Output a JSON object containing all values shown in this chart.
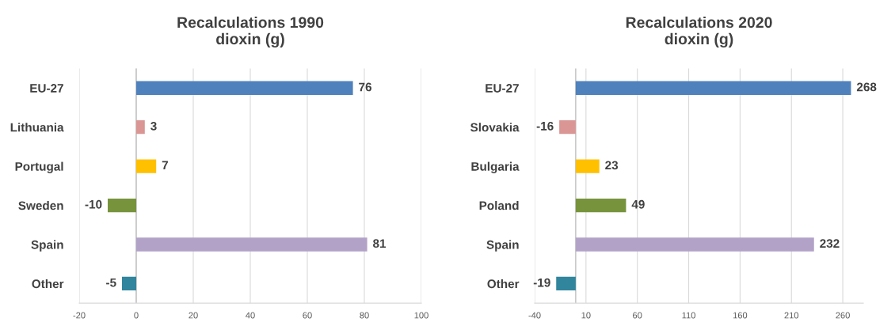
{
  "chart_data": [
    {
      "type": "bar",
      "orientation": "horizontal",
      "title": "Recalculations 1990\ndioxin (g)",
      "categories": [
        "EU-27",
        "Lithuania",
        "Portugal",
        "Sweden",
        "Spain",
        "Other"
      ],
      "values": [
        76,
        3,
        7,
        -10,
        81,
        -5
      ],
      "colors": [
        "#4f81bd",
        "#d99694",
        "#ffc000",
        "#77933c",
        "#b2a2c7",
        "#31859c"
      ],
      "xlim": [
        -20,
        100
      ],
      "xticks": [
        -20,
        0,
        20,
        40,
        60,
        80,
        100
      ],
      "grid": "x",
      "data_labels": true,
      "ref_lines": [
        {
          "axis": "x",
          "value": 0,
          "color": "#bfbfbf"
        }
      ]
    },
    {
      "type": "bar",
      "orientation": "horizontal",
      "title": "Recalculations 2020\ndioxin (g)",
      "categories": [
        "EU-27",
        "Slovakia",
        "Bulgaria",
        "Poland",
        "Spain",
        "Other"
      ],
      "values": [
        268,
        -16,
        23,
        49,
        232,
        -19
      ],
      "colors": [
        "#4f81bd",
        "#d99694",
        "#ffc000",
        "#77933c",
        "#b2a2c7",
        "#31859c"
      ],
      "xlim": [
        -40,
        280
      ],
      "xticks": [
        -40,
        10,
        60,
        110,
        160,
        210,
        260
      ],
      "grid": "x",
      "data_labels": true,
      "ref_lines": [
        {
          "axis": "x",
          "value": 0,
          "color": "#bfbfbf"
        }
      ]
    }
  ]
}
